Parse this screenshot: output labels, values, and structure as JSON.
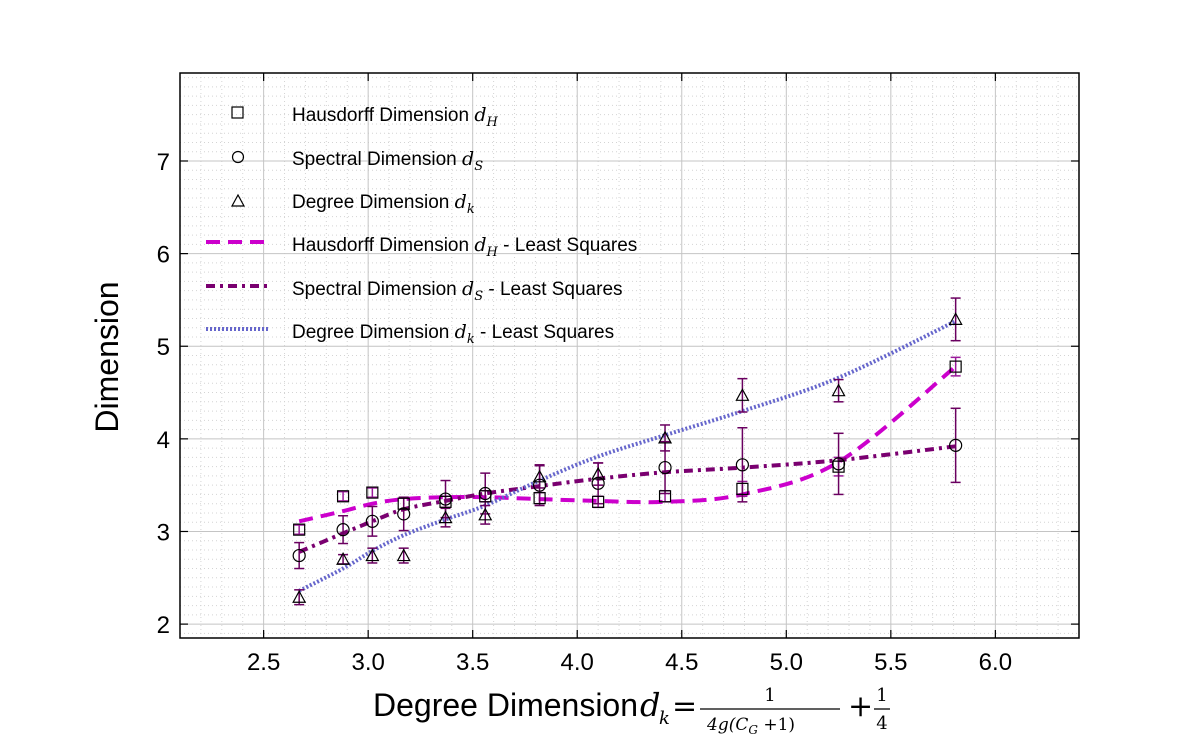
{
  "chart_data": {
    "type": "line",
    "title": "",
    "xlabel": "Degree Dimension",
    "xlabel_math": {
      "var": "d",
      "sub": "k",
      "eq": "=",
      "frac1_num": "1",
      "frac1_den": "4g(C",
      "frac1_den_sub": "G",
      "frac1_den_tail": " +1)",
      "plus": "+",
      "frac2_num": "1",
      "frac2_den": "4"
    },
    "ylabel": "Dimension",
    "xlim": [
      2.1,
      6.4
    ],
    "ylim": [
      1.85,
      7.95
    ],
    "xticks": [
      "2.5",
      "3.0",
      "3.5",
      "4.0",
      "4.5",
      "5.0",
      "5.5",
      "6.0"
    ],
    "yticks": [
      "2",
      "3",
      "4",
      "5",
      "6",
      "7"
    ],
    "x": [
      2.67,
      2.88,
      3.02,
      3.17,
      3.37,
      3.56,
      3.82,
      4.1,
      4.42,
      4.79,
      5.25,
      5.81
    ],
    "series": [
      {
        "name": "Hausdorff Dimension",
        "sub": "H",
        "marker": "square",
        "values": [
          3.02,
          3.38,
          3.42,
          3.3,
          3.32,
          3.38,
          3.36,
          3.32,
          3.38,
          3.46,
          3.7,
          4.78
        ],
        "errors": [
          0.05,
          0.05,
          0.05,
          0.06,
          0.06,
          0.06,
          0.06,
          0.06,
          0.06,
          0.08,
          0.1,
          0.1
        ]
      },
      {
        "name": "Spectral Dimension",
        "sub": "S",
        "marker": "circle",
        "values": [
          2.74,
          3.02,
          3.11,
          3.19,
          3.35,
          3.41,
          3.5,
          3.52,
          3.69,
          3.72,
          3.73,
          3.93
        ],
        "errors": [
          0.14,
          0.15,
          0.16,
          0.18,
          0.2,
          0.22,
          0.22,
          0.22,
          0.28,
          0.4,
          0.33,
          0.4
        ]
      },
      {
        "name": "Degree Dimension",
        "sub": "k",
        "marker": "triangle",
        "values": [
          2.29,
          2.7,
          2.74,
          2.74,
          3.15,
          3.18,
          3.59,
          3.62,
          4.01,
          4.47,
          4.52,
          5.29
        ],
        "errors": [
          0.08,
          0.05,
          0.08,
          0.08,
          0.1,
          0.1,
          0.12,
          0.12,
          0.14,
          0.18,
          0.12,
          0.23
        ]
      }
    ],
    "fits": [
      {
        "name": "Hausdorff Dimension",
        "sub": "H",
        "suffix": " - Least Squares",
        "color": "#cc00cc",
        "style": "dashed",
        "values": [
          3.11,
          3.22,
          3.3,
          3.35,
          3.37,
          3.37,
          3.35,
          3.33,
          3.32,
          3.4,
          3.75,
          4.78
        ]
      },
      {
        "name": "Spectral Dimension",
        "sub": "S",
        "suffix": " - Least Squares",
        "color": "#7a0070",
        "style": "dashdot",
        "values": [
          2.78,
          2.98,
          3.11,
          3.24,
          3.33,
          3.41,
          3.49,
          3.57,
          3.64,
          3.69,
          3.77,
          3.92
        ]
      },
      {
        "name": "Degree Dimension",
        "sub": "k",
        "suffix": " - Least Squares",
        "color": "#6666cc",
        "style": "dotted",
        "values": [
          2.36,
          2.6,
          2.79,
          2.96,
          3.13,
          3.28,
          3.55,
          3.81,
          4.04,
          4.3,
          4.66,
          5.27
        ]
      }
    ]
  }
}
